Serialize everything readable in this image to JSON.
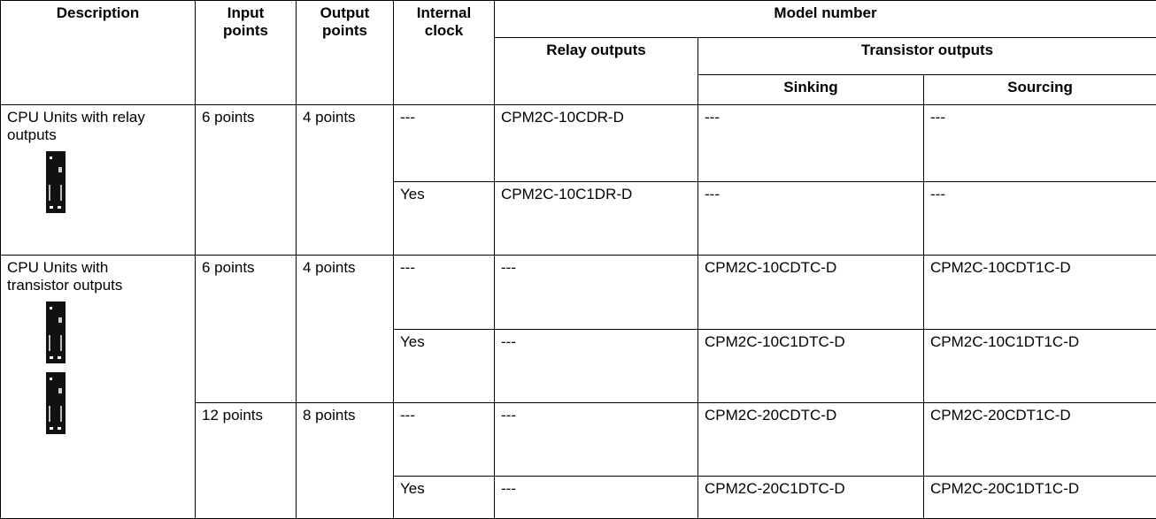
{
  "header": {
    "description": "Description",
    "input_points": "Input points",
    "output_points": "Output points",
    "internal_clock": "Internal clock",
    "model_number": "Model number",
    "relay_outputs": "Relay outputs",
    "transistor_outputs": "Transistor outputs",
    "sinking": "Sinking",
    "sourcing": "Sourcing"
  },
  "groups": [
    {
      "description": "CPU Units with relay outputs",
      "sets": [
        {
          "input": "6 points",
          "output": "4 points",
          "rows": [
            {
              "clock": "---",
              "relay": "CPM2C-10CDR-D",
              "sinking": "---",
              "sourcing": "---"
            },
            {
              "clock": "Yes",
              "relay": "CPM2C-10C1DR-D",
              "sinking": "---",
              "sourcing": "---"
            }
          ]
        }
      ]
    },
    {
      "description": "CPU Units with transistor outputs",
      "sets": [
        {
          "input": "6 points",
          "output": "4 points",
          "rows": [
            {
              "clock": "---",
              "relay": "---",
              "sinking": "CPM2C-10CDTC-D",
              "sourcing": "CPM2C-10CDT1C-D"
            },
            {
              "clock": "Yes",
              "relay": "---",
              "sinking": "CPM2C-10C1DTC-D",
              "sourcing": "CPM2C-10C1DT1C-D"
            }
          ]
        },
        {
          "input": "12 points",
          "output": "8 points",
          "rows": [
            {
              "clock": "---",
              "relay": "---",
              "sinking": "CPM2C-20CDTC-D",
              "sourcing": "CPM2C-20CDT1C-D"
            },
            {
              "clock": "Yes",
              "relay": "---",
              "sinking": "CPM2C-20C1DTC-D",
              "sourcing": "CPM2C-20C1DT1C-D"
            }
          ]
        }
      ]
    }
  ]
}
